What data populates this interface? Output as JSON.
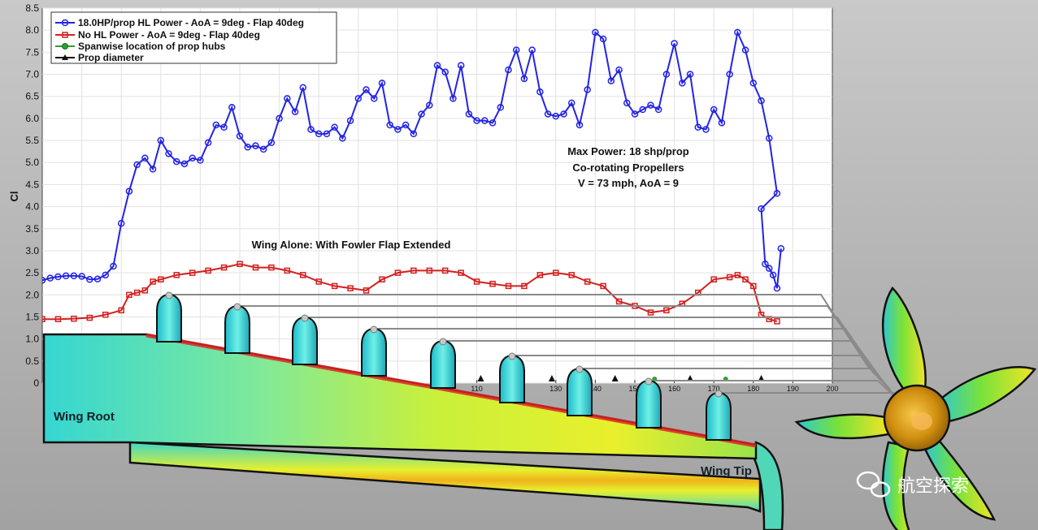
{
  "chart_data": {
    "type": "line",
    "ylabel": "Cl",
    "xlabel": "",
    "xlim": [
      0,
      200
    ],
    "ylim": [
      0,
      8.5
    ],
    "x_ticks": [
      110,
      120,
      130,
      140,
      150,
      160,
      170,
      180,
      190,
      200
    ],
    "y_ticks": [
      0,
      0.5,
      1.0,
      1.5,
      2.0,
      2.5,
      3.0,
      3.5,
      4.0,
      4.5,
      5.0,
      5.5,
      6.0,
      6.5,
      7.0,
      7.5,
      8.0,
      8.5
    ],
    "grid": true,
    "legend_position": "top-left",
    "series": [
      {
        "name": "18.0HP/prop HL Power - AoA = 9deg - Flap 40deg",
        "color": "#2323e6",
        "marker": "circle",
        "x": [
          0,
          2,
          4,
          6,
          8,
          10,
          12,
          14,
          16,
          18,
          20,
          22,
          24,
          26,
          28,
          30,
          32,
          34,
          36,
          38,
          40,
          42,
          44,
          46,
          48,
          50,
          52,
          54,
          56,
          58,
          60,
          62,
          64,
          66,
          68,
          70,
          72,
          74,
          76,
          78,
          80,
          82,
          84,
          86,
          88,
          90,
          92,
          94,
          96,
          98,
          100,
          102,
          104,
          106,
          108,
          110,
          112,
          114,
          116,
          118,
          120,
          122,
          124,
          126,
          128,
          130,
          132,
          134,
          136,
          138,
          140,
          142,
          144,
          146,
          148,
          150,
          152,
          154,
          156,
          158,
          160,
          162,
          164,
          166,
          168,
          170,
          172,
          174,
          176,
          178,
          180,
          182,
          184,
          186
        ],
        "values": [
          2.33,
          2.38,
          2.41,
          2.43,
          2.43,
          2.42,
          2.35,
          2.36,
          2.45,
          2.65,
          3.62,
          4.35,
          4.95,
          5.1,
          4.85,
          5.5,
          5.2,
          5.02,
          4.97,
          5.1,
          5.05,
          5.45,
          5.85,
          5.8,
          6.25,
          5.6,
          5.35,
          5.38,
          5.3,
          5.45,
          6.0,
          6.45,
          6.15,
          6.7,
          5.75,
          5.65,
          5.65,
          5.8,
          5.55,
          5.95,
          6.45,
          6.65,
          6.45,
          6.8,
          5.85,
          5.75,
          5.85,
          5.65,
          6.1,
          6.3,
          7.2,
          7.05,
          6.45,
          7.2,
          6.1,
          5.95,
          5.95,
          5.9,
          6.25,
          7.1,
          7.55,
          6.9,
          7.55,
          6.6,
          6.1,
          6.05,
          6.1,
          6.35,
          5.85,
          6.65,
          7.95,
          7.8,
          6.85,
          7.1,
          6.35,
          6.1,
          6.2,
          6.3,
          6.2,
          7.0,
          7.7,
          6.8,
          7.0,
          5.8,
          5.75,
          6.2,
          5.9,
          7.0,
          7.95,
          7.55,
          6.8,
          6.4,
          5.55,
          4.3
        ],
        "tail_x": [
          182,
          183,
          184,
          185,
          186,
          187
        ],
        "tail_values": [
          3.95,
          2.7,
          2.6,
          2.45,
          2.15,
          3.05
        ]
      },
      {
        "name": "No HL Power - AoA = 9deg - Flap 40deg",
        "color": "#d42020",
        "marker": "square",
        "x": [
          0,
          4,
          8,
          12,
          16,
          20,
          22,
          24,
          26,
          28,
          30,
          34,
          38,
          42,
          46,
          50,
          54,
          58,
          62,
          66,
          70,
          74,
          78,
          82,
          86,
          90,
          94,
          98,
          102,
          106,
          110,
          114,
          118,
          122,
          126,
          130,
          134,
          138,
          142,
          146,
          150,
          154,
          158,
          162,
          166,
          170,
          174,
          176,
          178,
          180,
          182,
          184,
          186
        ],
        "values": [
          1.45,
          1.45,
          1.46,
          1.48,
          1.55,
          1.65,
          2.0,
          2.05,
          2.1,
          2.3,
          2.35,
          2.45,
          2.5,
          2.55,
          2.62,
          2.7,
          2.62,
          2.62,
          2.55,
          2.45,
          2.3,
          2.2,
          2.15,
          2.1,
          2.35,
          2.5,
          2.55,
          2.55,
          2.55,
          2.5,
          2.3,
          2.25,
          2.2,
          2.2,
          2.45,
          2.5,
          2.45,
          2.3,
          2.2,
          1.85,
          1.75,
          1.6,
          1.65,
          1.8,
          2.05,
          2.35,
          2.4,
          2.45,
          2.35,
          2.2,
          1.55,
          1.45,
          1.4
        ]
      },
      {
        "name": "Spanwise location of prop hubs",
        "color": "#2fa02f",
        "marker": "circle",
        "x": [
          155,
          173
        ],
        "values": [
          0.02,
          0.02
        ]
      },
      {
        "name": "Prop diameter",
        "color": "#111111",
        "marker": "triangle",
        "x": [
          101,
          111,
          129,
          145,
          164,
          182
        ],
        "values": [
          0.02,
          0.02,
          0.02,
          0.02,
          0.02,
          0.02
        ]
      }
    ],
    "annotations": [
      "Max Power: 18 shp/prop",
      "Co-rotating Propellers",
      "V = 73 mph, AoA = 9",
      "Wing Alone: With Fowler Flap Extended"
    ]
  },
  "overlay": {
    "wing_root_label": "Wing Root",
    "wing_tip_label": "Wing Tip",
    "watermark_text": "航空探索",
    "nacelle_count": 9
  },
  "colors": {
    "cfd_low": "#29d3cf",
    "cfd_mid": "#8ef03c",
    "cfd_high": "#f6e31c",
    "cfd_peak": "#e02525"
  }
}
